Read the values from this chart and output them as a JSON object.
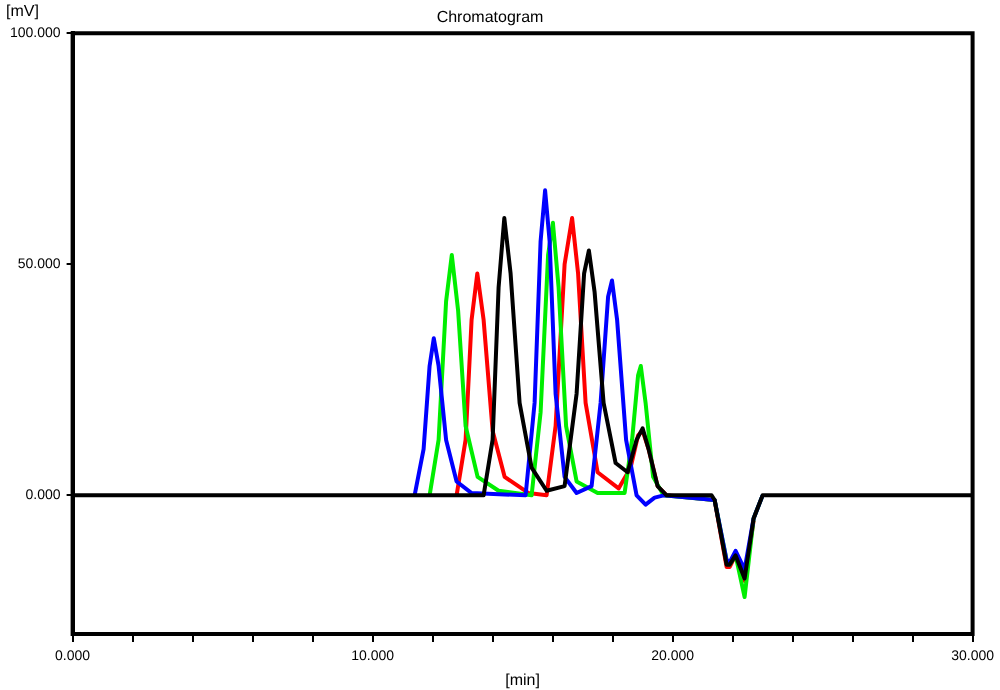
{
  "chart_data": {
    "type": "line",
    "title": "Chromatogram",
    "xlabel": "[min]",
    "ylabel": "[mV]",
    "legend": false,
    "grid": false,
    "marker": "none",
    "line_style": "solid",
    "xlim": [
      0,
      30
    ],
    "ylim": [
      -30,
      100
    ],
    "xticks": [
      {
        "value": 0,
        "label": "0.000"
      },
      {
        "value": 2,
        "label": null
      },
      {
        "value": 4,
        "label": null
      },
      {
        "value": 6,
        "label": null
      },
      {
        "value": 8,
        "label": null
      },
      {
        "value": 10,
        "label": "10.000"
      },
      {
        "value": 12,
        "label": null
      },
      {
        "value": 14,
        "label": null
      },
      {
        "value": 16,
        "label": null
      },
      {
        "value": 18,
        "label": null
      },
      {
        "value": 20,
        "label": "20.000"
      },
      {
        "value": 22,
        "label": null
      },
      {
        "value": 24,
        "label": null
      },
      {
        "value": 26,
        "label": null
      },
      {
        "value": 28,
        "label": null
      },
      {
        "value": 30,
        "label": "30.000"
      }
    ],
    "yticks": [
      {
        "value": 0,
        "label": "0.000"
      },
      {
        "value": 50,
        "label": "50.000"
      },
      {
        "value": 100,
        "label": "100.000"
      }
    ],
    "series": [
      {
        "color": "#000000",
        "x": [
          0,
          13.7,
          14.0,
          14.2,
          14.39,
          14.6,
          14.9,
          15.3,
          15.8,
          16.4,
          16.8,
          17.05,
          17.21,
          17.4,
          17.7,
          18.1,
          18.5,
          18.8,
          19.0,
          19.2,
          19.5,
          19.8,
          21.3,
          21.4,
          21.8,
          21.9,
          22.1,
          22.4,
          22.7,
          23.0,
          30
        ],
        "values": [
          0,
          0,
          12,
          45,
          60,
          48,
          20,
          6,
          1,
          2,
          22,
          48,
          53,
          44,
          20,
          7,
          5,
          12,
          14.5,
          10,
          2,
          0,
          0,
          -1,
          -15,
          -15,
          -13,
          -18,
          -5,
          0,
          0
        ]
      },
      {
        "color": "#0000ff",
        "x": [
          11.4,
          11.7,
          11.9,
          12.04,
          12.2,
          12.45,
          12.8,
          13.3,
          15.1,
          15.4,
          15.6,
          15.75,
          15.9,
          16.1,
          16.4,
          16.8,
          17.3,
          17.6,
          17.85,
          17.98,
          18.15,
          18.45,
          18.8,
          19.1,
          19.4,
          19.7,
          21.4,
          21.8,
          21.9,
          22.1,
          22.4,
          22.7,
          23.0
        ],
        "values": [
          0,
          10,
          28,
          34,
          28,
          12,
          3,
          0.5,
          0,
          20,
          55,
          66,
          55,
          22,
          4,
          0.5,
          2,
          20,
          43,
          46.5,
          38,
          12,
          0,
          -2,
          -0.5,
          0,
          -1,
          -14,
          -14.5,
          -12,
          -16,
          -5,
          0
        ]
      },
      {
        "color": "#00ee00",
        "x": [
          11.9,
          12.2,
          12.45,
          12.64,
          12.85,
          13.1,
          13.5,
          14.2,
          15.3,
          15.6,
          15.85,
          16.01,
          16.2,
          16.45,
          16.8,
          17.5,
          18.4,
          18.65,
          18.85,
          18.94,
          19.1,
          19.35,
          19.7,
          21.4,
          21.8,
          21.9,
          22.1,
          22.4,
          22.7,
          23.0
        ],
        "values": [
          0,
          12,
          42,
          52,
          40,
          15,
          4,
          1,
          0,
          18,
          52,
          59,
          45,
          15,
          3,
          0.5,
          0.5,
          12,
          26,
          28,
          20,
          4,
          0,
          -1,
          -14,
          -15,
          -13,
          -22,
          -5,
          0
        ]
      },
      {
        "color": "#ff0000",
        "x": [
          12.8,
          13.1,
          13.3,
          13.49,
          13.7,
          14.0,
          14.4,
          15.2,
          15.8,
          16.1,
          16.4,
          16.65,
          16.85,
          17.1,
          17.5,
          18.2,
          18.6,
          18.85,
          19.0,
          19.2,
          19.5,
          19.8,
          21.4,
          21.8,
          21.9,
          22.1,
          22.4,
          22.7
        ],
        "values": [
          0,
          12,
          38,
          48,
          38,
          14,
          4,
          0.5,
          0,
          15,
          50,
          60,
          48,
          20,
          5,
          1.5,
          6,
          13,
          14,
          10,
          2,
          0,
          -1,
          -15.5,
          -15.5,
          -13,
          -18.5,
          -5.5
        ]
      }
    ]
  }
}
